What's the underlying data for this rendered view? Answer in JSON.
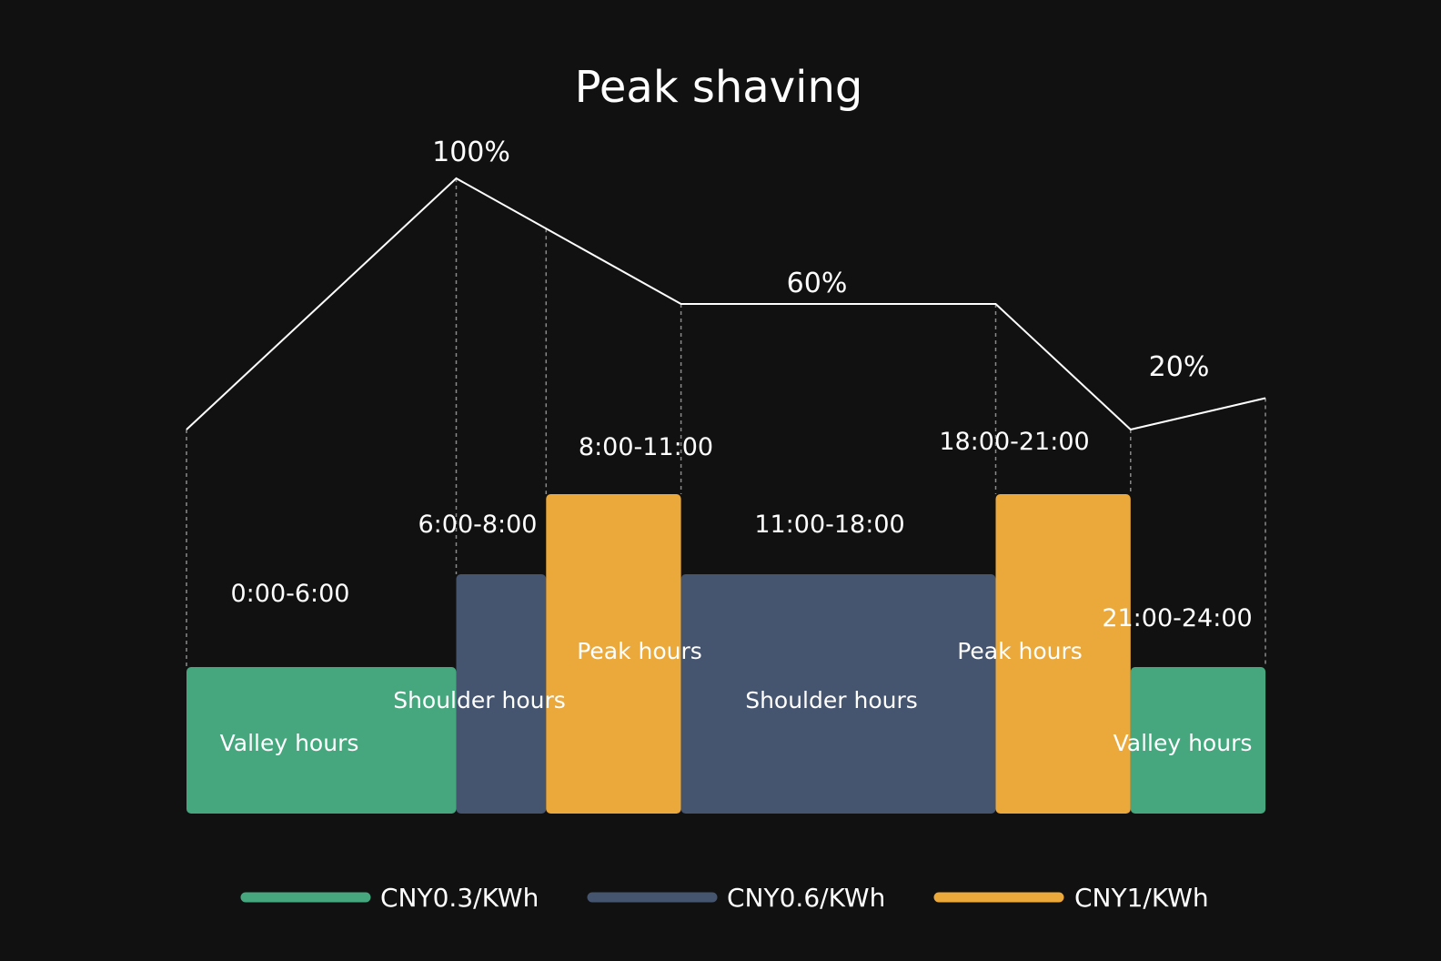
{
  "chart_data": {
    "type": "bar",
    "title": "Peak shaving",
    "background": "#111111",
    "line_color": "#ffffff",
    "x_domain": [
      0,
      24
    ],
    "bars": [
      {
        "start": 0,
        "end": 6,
        "time": "0:00-6:00",
        "category": "Valley hours",
        "tier": 0
      },
      {
        "start": 6,
        "end": 8,
        "time": "6:00-8:00",
        "category": "Shoulder hours",
        "tier": 1
      },
      {
        "start": 8,
        "end": 11,
        "time": "8:00-11:00",
        "category": "Peak hours",
        "tier": 2
      },
      {
        "start": 11,
        "end": 18,
        "time": "11:00-18:00",
        "category": "Shoulder hours",
        "tier": 1
      },
      {
        "start": 18,
        "end": 21,
        "time": "18:00-21:00",
        "category": "Peak hours",
        "tier": 2
      },
      {
        "start": 21,
        "end": 24,
        "time": "21:00-24:00",
        "category": "Valley hours",
        "tier": 0
      }
    ],
    "tiers": [
      {
        "price": "CNY0.3/KWh",
        "color": "#46a77f"
      },
      {
        "price": "CNY0.6/KWh",
        "color": "#45546f"
      },
      {
        "price": "CNY1/KWh",
        "color": "#eba93b"
      }
    ],
    "line": {
      "points": [
        {
          "x": 0,
          "y": 20
        },
        {
          "x": 6,
          "y": 100
        },
        {
          "x": 11,
          "y": 60
        },
        {
          "x": 18,
          "y": 60
        },
        {
          "x": 21,
          "y": 20
        },
        {
          "x": 24,
          "y": 30
        }
      ],
      "labels": [
        "100%",
        "60%",
        "20%"
      ]
    }
  }
}
